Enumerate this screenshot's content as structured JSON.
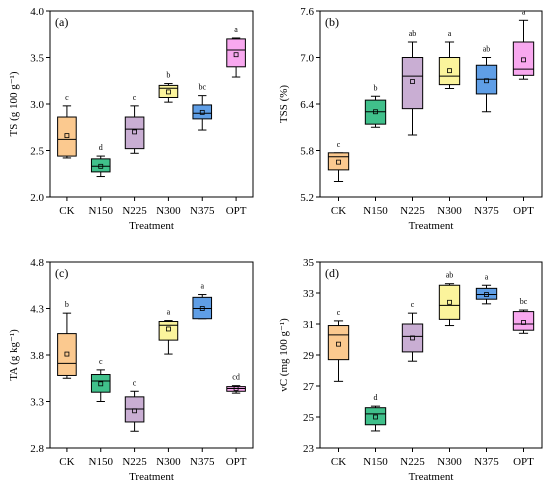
{
  "chart_data": [
    {
      "type": "box",
      "panel_label": "(a)",
      "ylabel": "TS (g 100 g⁻¹)",
      "xlabel": "Treatment",
      "categories": [
        "CK",
        "N150",
        "N225",
        "N300",
        "N375",
        "OPT"
      ],
      "ylim": [
        2.0,
        4.0
      ],
      "yticks": [
        "2.0",
        "2.5",
        "3.0",
        "3.5",
        "4.0"
      ],
      "boxes": [
        {
          "min": 2.42,
          "q1": 2.44,
          "median": 2.62,
          "q3": 2.86,
          "max": 2.98,
          "mean": 2.66,
          "letter": "c"
        },
        {
          "min": 2.22,
          "q1": 2.27,
          "median": 2.33,
          "q3": 2.41,
          "max": 2.44,
          "mean": 2.33,
          "letter": "d"
        },
        {
          "min": 2.47,
          "q1": 2.52,
          "median": 2.73,
          "q3": 2.86,
          "max": 2.98,
          "mean": 2.7,
          "letter": "c"
        },
        {
          "min": 3.02,
          "q1": 3.07,
          "median": 3.17,
          "q3": 3.2,
          "max": 3.22,
          "mean": 3.13,
          "letter": "b"
        },
        {
          "min": 2.72,
          "q1": 2.84,
          "median": 2.9,
          "q3": 2.99,
          "max": 3.09,
          "mean": 2.91,
          "letter": "bc"
        },
        {
          "min": 3.29,
          "q1": 3.4,
          "median": 3.58,
          "q3": 3.7,
          "max": 3.71,
          "mean": 3.53,
          "letter": "a"
        }
      ]
    },
    {
      "type": "box",
      "panel_label": "(b)",
      "ylabel": "TSS (%)",
      "xlabel": "Treatment",
      "categories": [
        "CK",
        "N150",
        "N225",
        "N300",
        "N375",
        "OPT"
      ],
      "ylim": [
        5.2,
        7.6
      ],
      "yticks": [
        "5.2",
        "5.8",
        "6.4",
        "7.0",
        "7.6"
      ],
      "boxes": [
        {
          "min": 5.4,
          "q1": 5.55,
          "median": 5.72,
          "q3": 5.77,
          "max": 5.77,
          "mean": 5.65,
          "letter": "c"
        },
        {
          "min": 6.1,
          "q1": 6.14,
          "median": 6.3,
          "q3": 6.45,
          "max": 6.5,
          "mean": 6.3,
          "letter": "b"
        },
        {
          "min": 6.0,
          "q1": 6.34,
          "median": 6.76,
          "q3": 7.0,
          "max": 7.2,
          "mean": 6.69,
          "letter": "ab"
        },
        {
          "min": 6.6,
          "q1": 6.65,
          "median": 6.76,
          "q3": 7.0,
          "max": 7.2,
          "mean": 6.83,
          "letter": "a"
        },
        {
          "min": 6.3,
          "q1": 6.53,
          "median": 6.72,
          "q3": 6.9,
          "max": 7.0,
          "mean": 6.7,
          "letter": "ab"
        },
        {
          "min": 6.72,
          "q1": 6.77,
          "median": 6.85,
          "q3": 7.2,
          "max": 7.48,
          "mean": 6.97,
          "letter": "a"
        }
      ]
    },
    {
      "type": "box",
      "panel_label": "(c)",
      "ylabel": "TA (g kg⁻¹)",
      "xlabel": "Treatment",
      "categories": [
        "CK",
        "N150",
        "N225",
        "N300",
        "N375",
        "OPT"
      ],
      "ylim": [
        2.8,
        4.8
      ],
      "yticks": [
        "2.8",
        "3.3",
        "3.8",
        "4.3",
        "4.8"
      ],
      "boxes": [
        {
          "min": 3.55,
          "q1": 3.58,
          "median": 3.71,
          "q3": 4.03,
          "max": 4.25,
          "mean": 3.81,
          "letter": "b"
        },
        {
          "min": 3.3,
          "q1": 3.4,
          "median": 3.52,
          "q3": 3.59,
          "max": 3.64,
          "mean": 3.49,
          "letter": "c"
        },
        {
          "min": 2.98,
          "q1": 3.08,
          "median": 3.22,
          "q3": 3.35,
          "max": 3.41,
          "mean": 3.2,
          "letter": "c"
        },
        {
          "min": 3.81,
          "q1": 3.96,
          "median": 4.12,
          "q3": 4.16,
          "max": 4.17,
          "mean": 4.08,
          "letter": "a"
        },
        {
          "min": 4.19,
          "q1": 4.19,
          "median": 4.3,
          "q3": 4.42,
          "max": 4.45,
          "mean": 4.3,
          "letter": "a"
        },
        {
          "min": 3.39,
          "q1": 3.41,
          "median": 3.44,
          "q3": 3.46,
          "max": 3.47,
          "mean": 3.44,
          "letter": "cd"
        }
      ]
    },
    {
      "type": "box",
      "panel_label": "(d)",
      "ylabel": "vC (mg 100 g⁻¹)",
      "xlabel": "Treatment",
      "categories": [
        "CK",
        "N150",
        "N225",
        "N300",
        "N375",
        "OPT"
      ],
      "ylim": [
        23,
        35
      ],
      "yticks": [
        "23",
        "25",
        "27",
        "29",
        "31",
        "33",
        "35"
      ],
      "boxes": [
        {
          "min": 27.3,
          "q1": 28.7,
          "median": 30.3,
          "q3": 30.9,
          "max": 31.2,
          "mean": 29.7,
          "letter": "c"
        },
        {
          "min": 24.1,
          "q1": 24.5,
          "median": 25.2,
          "q3": 25.6,
          "max": 25.7,
          "mean": 25.0,
          "letter": "d"
        },
        {
          "min": 28.6,
          "q1": 29.2,
          "median": 30.2,
          "q3": 31.0,
          "max": 31.7,
          "mean": 30.1,
          "letter": "c"
        },
        {
          "min": 30.9,
          "q1": 31.3,
          "median": 32.2,
          "q3": 33.5,
          "max": 33.6,
          "mean": 32.4,
          "letter": "ab"
        },
        {
          "min": 32.3,
          "q1": 32.6,
          "median": 32.9,
          "q3": 33.3,
          "max": 33.5,
          "mean": 32.9,
          "letter": "a"
        },
        {
          "min": 30.4,
          "q1": 30.6,
          "median": 31.0,
          "q3": 31.8,
          "max": 31.9,
          "mean": 31.1,
          "letter": "bc"
        }
      ]
    }
  ],
  "box_colors": [
    "#fbc98f",
    "#40c08b",
    "#c9aed3",
    "#fbf49c",
    "#5f9ee6",
    "#f8a8ef"
  ],
  "line_color": "#000000",
  "mean_marker": "open-square"
}
